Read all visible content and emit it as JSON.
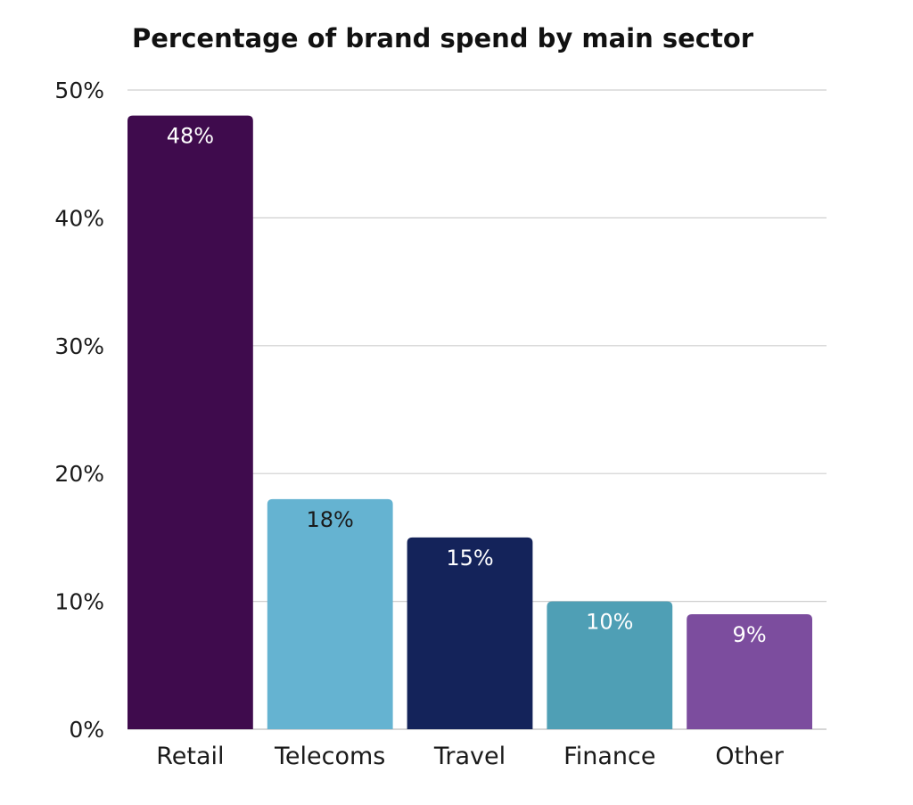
{
  "chart_data": {
    "type": "bar",
    "title": "Percentage of brand spend by main sector",
    "categories": [
      "Retail",
      "Telecoms",
      "Travel",
      "Finance",
      "Other"
    ],
    "values": [
      48,
      18,
      15,
      10,
      9
    ],
    "data_labels": [
      "48%",
      "18%",
      "15%",
      "10%",
      "9%"
    ],
    "colors": [
      "#3f0b4d",
      "#65b3d1",
      "#14235a",
      "#4f9fb5",
      "#7c4d9e"
    ],
    "label_colors": [
      "#ffffff",
      "#1a1a1a",
      "#ffffff",
      "#ffffff",
      "#ffffff"
    ],
    "yticks": [
      0,
      10,
      20,
      30,
      40,
      50
    ],
    "ytick_labels": [
      "0%",
      "10%",
      "20%",
      "30%",
      "40%",
      "50%"
    ],
    "ylim": [
      0,
      50
    ],
    "xlabel": "",
    "ylabel": "",
    "grid": true,
    "legend": "none"
  }
}
